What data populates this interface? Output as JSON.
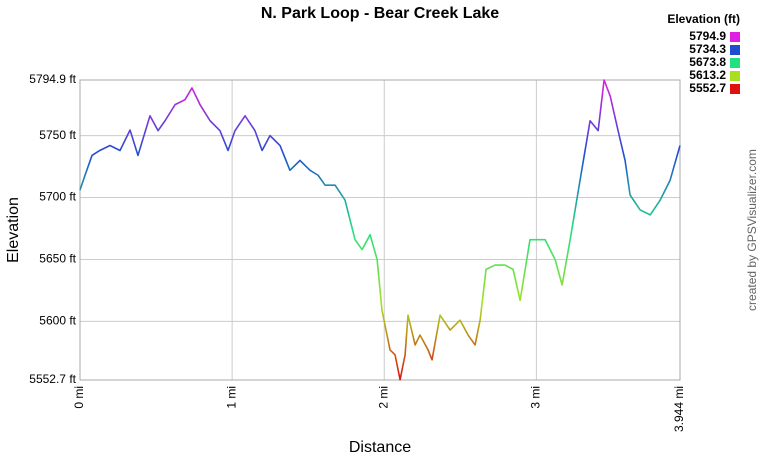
{
  "chart_data": {
    "type": "line",
    "title": "N. Park Loop - Bear Creek Lake",
    "x_label": "Distance",
    "y_label": "Elevation",
    "credit": "created by GPSVisualizer.com",
    "x": [
      0,
      0.033,
      0.079,
      0.13,
      0.197,
      0.263,
      0.329,
      0.381,
      0.46,
      0.513,
      0.559,
      0.625,
      0.69,
      0.736,
      0.789,
      0.855,
      0.92,
      0.973,
      1.019,
      1.085,
      1.15,
      1.197,
      1.249,
      1.315,
      1.38,
      1.446,
      1.512,
      1.565,
      1.611,
      1.677,
      1.742,
      1.808,
      1.854,
      1.907,
      1.953,
      1.985,
      2.038,
      2.071,
      2.104,
      2.137,
      2.156,
      2.203,
      2.235,
      2.288,
      2.314,
      2.367,
      2.433,
      2.498,
      2.551,
      2.597,
      2.63,
      2.669,
      2.728,
      2.794,
      2.847,
      2.893,
      2.958,
      3.057,
      3.123,
      3.169,
      3.222,
      3.287,
      3.353,
      3.406,
      3.445,
      3.485,
      3.537,
      3.583,
      3.616,
      3.682,
      3.748,
      3.814,
      3.879,
      3.944
    ],
    "series": [
      {
        "name": "Elevation (ft)",
        "values": [
          5706,
          5718,
          5734,
          5738,
          5742,
          5738,
          5754.5,
          5734,
          5766,
          5754,
          5762,
          5775,
          5779,
          5788.5,
          5775,
          5762,
          5754,
          5738,
          5754,
          5766,
          5754,
          5738,
          5750,
          5742,
          5722,
          5730,
          5722,
          5718,
          5710,
          5710,
          5698,
          5666,
          5658,
          5670,
          5650,
          5609,
          5577,
          5573,
          5553,
          5573,
          5605,
          5581,
          5589,
          5577,
          5569,
          5605,
          5593,
          5601,
          5589,
          5581,
          5601,
          5642,
          5645.5,
          5645.5,
          5642,
          5617,
          5666,
          5666,
          5650,
          5629.5,
          5666,
          5714,
          5762,
          5754,
          5794.9,
          5782,
          5754,
          5730,
          5702,
          5690,
          5686,
          5698,
          5714,
          5742
        ]
      }
    ],
    "xlim": [
      0,
      3.944
    ],
    "xticks": [
      {
        "value": 0,
        "label": "0 mi"
      },
      {
        "value": 1,
        "label": "1 mi"
      },
      {
        "value": 2,
        "label": "2 mi"
      },
      {
        "value": 3,
        "label": "3 mi"
      },
      {
        "value": 3.944,
        "label": "3.944 mi"
      }
    ],
    "ylim": [
      5552.7,
      5794.9
    ],
    "yticks": [
      {
        "value": 5552.7,
        "label": "5552.7 ft"
      },
      {
        "value": 5600,
        "label": "5600 ft"
      },
      {
        "value": 5650,
        "label": "5650 ft"
      },
      {
        "value": 5700,
        "label": "5700 ft"
      },
      {
        "value": 5750,
        "label": "5750 ft"
      },
      {
        "value": 5794.9,
        "label": "5794.9 ft"
      }
    ],
    "grid": true,
    "legend": {
      "title": "Elevation (ft)",
      "position": "top-right",
      "items": [
        {
          "value": 5794.9,
          "color": "#e020e0"
        },
        {
          "value": 5734.3,
          "color": "#1f4fd0"
        },
        {
          "value": 5673.8,
          "color": "#20e080"
        },
        {
          "value": 5613.2,
          "color": "#a8e020"
        },
        {
          "value": 5552.7,
          "color": "#e01010"
        }
      ]
    }
  }
}
